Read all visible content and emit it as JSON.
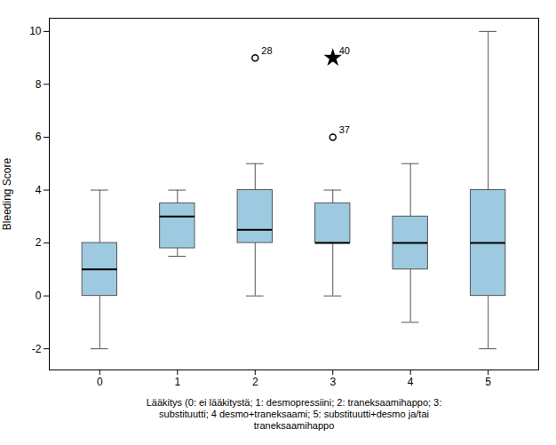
{
  "chart_data": {
    "type": "box",
    "categories": [
      0,
      1,
      2,
      3,
      4,
      5
    ],
    "whislo": [
      -2,
      1.5,
      0,
      0,
      -1,
      -2
    ],
    "q1": [
      0,
      1.8,
      2.0,
      2.0,
      1.0,
      0
    ],
    "med": [
      1,
      3.0,
      2.5,
      2.0,
      2.0,
      2.0
    ],
    "q3": [
      2,
      3.5,
      4.0,
      3.5,
      3.0,
      4.0
    ],
    "whishi": [
      4,
      4,
      5,
      4,
      5,
      10
    ],
    "outliers": [
      {
        "x": 2,
        "value": 9,
        "label": "28",
        "marker": "circle"
      },
      {
        "x": 3,
        "value": 9,
        "label": "40",
        "marker": "star"
      },
      {
        "x": 3,
        "value": 6,
        "label": "37",
        "marker": "circle"
      }
    ],
    "ylabel": "Bleeding Score",
    "xlabel": "Lääkitys (0: ei lääkitystä; 1: desmopressiini; 2: traneksaamihappo; 3:\nsubstituutti; 4 desmo+traneksaami; 5: substituutti+desmo ja/tai\ntraneksaamihappo",
    "ylim": [
      -2.8,
      10.5
    ],
    "xlim": [
      -0.65,
      5.65
    ],
    "yticks": [
      -2,
      0,
      2,
      4,
      6,
      8,
      10
    ],
    "xticks": [
      0,
      1,
      2,
      3,
      4,
      5
    ],
    "grid": false
  }
}
